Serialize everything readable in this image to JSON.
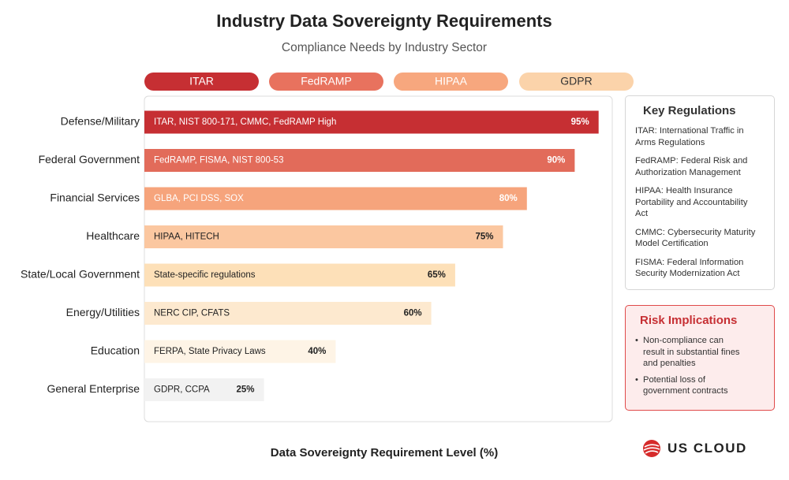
{
  "chart_data": {
    "type": "bar",
    "orientation": "horizontal",
    "title": "Industry Data Sovereignty Requirements",
    "subtitle": "Compliance Needs by Industry Sector",
    "x_label": "Data Sovereignty Requirement Level (%)",
    "legend": [
      {
        "name": "ITAR",
        "color": "#c62f33"
      },
      {
        "name": "FedRAMP",
        "color": "#e8725e"
      },
      {
        "name": "HIPAA",
        "color": "#f7a77e"
      },
      {
        "name": "GDPR",
        "color": "#fbd3aa"
      }
    ],
    "categories": [
      "Defense/Military",
      "Federal Government",
      "Financial Services",
      "Healthcare",
      "State/Local Government",
      "Energy/Utilities",
      "Education",
      "General Enterprise"
    ],
    "values": [
      95,
      90,
      80,
      75,
      65,
      60,
      40,
      25
    ],
    "value_labels": [
      "95%",
      "90%",
      "80%",
      "75%",
      "65%",
      "60%",
      "40%",
      "25%"
    ],
    "bar_labels": [
      "ITAR, NIST 800-171, CMMC, FedRAMP High",
      "FedRAMP, FISMA, NIST 800-53",
      "GLBA, PCI DSS, SOX",
      "HIPAA, HITECH",
      "State-specific regulations",
      "NERC CIP, CFATS",
      "FERPA, State Privacy Laws",
      "GDPR, CCPA"
    ],
    "colors": [
      "#c62f33",
      "#e26b5a",
      "#f6a47c",
      "#fbc7a0",
      "#fde0b8",
      "#fde9cf",
      "#fef4e6",
      "#f2f2f2"
    ],
    "xlim": [
      0,
      100
    ]
  },
  "key_regulations": {
    "title": "Key Regulations",
    "items": [
      "ITAR: International Traffic in Arms Regulations",
      "FedRAMP: Federal Risk and Authorization Management",
      "HIPAA: Health Insurance Portability and Accountability Act",
      "CMMC: Cybersecurity Maturity Model Certification",
      "FISMA: Federal Information Security Modernization Act"
    ]
  },
  "risk_implications": {
    "title": "Risk Implications",
    "items": [
      "Non-compliance can result in substantial fines and penalties",
      "Potential loss of government contracts"
    ]
  },
  "logo": "US CLOUD"
}
